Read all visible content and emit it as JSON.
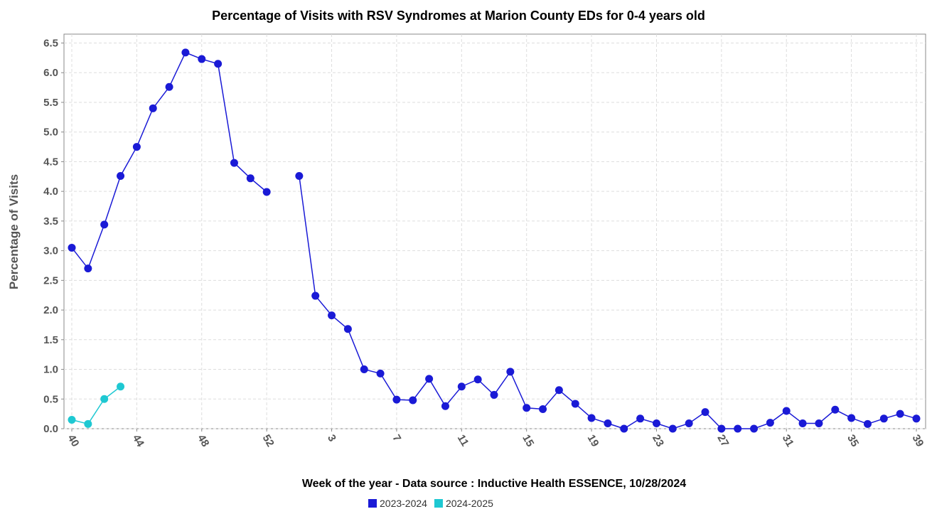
{
  "chart_data": {
    "type": "line",
    "title": "Percentage of Visits with RSV Syndromes at Marion County EDs for 0-4 years old",
    "x_label": "Week of the year - Data source : Inductive Health ESSENCE, 10/28/2024",
    "y_label": "Percentage of Visits",
    "categories": [
      "40",
      null,
      null,
      null,
      "44",
      null,
      null,
      null,
      "48",
      null,
      null,
      null,
      "52",
      null,
      null,
      null,
      "3",
      null,
      null,
      null,
      "7",
      null,
      null,
      null,
      "11",
      null,
      null,
      null,
      "15",
      null,
      null,
      null,
      "19",
      null,
      null,
      null,
      "23",
      null,
      null,
      null,
      "27",
      null,
      null,
      null,
      "31",
      null,
      null,
      null,
      "35",
      null,
      null,
      null,
      "39"
    ],
    "series": [
      {
        "name": "2023-2024",
        "color": "#1a1ad6",
        "values": [
          3.05,
          2.7,
          3.44,
          4.26,
          4.75,
          5.4,
          5.76,
          6.34,
          6.23,
          6.15,
          4.48,
          4.22,
          3.99,
          null,
          4.26,
          2.24,
          1.91,
          1.68,
          1.0,
          0.93,
          0.49,
          0.48,
          0.84,
          0.38,
          0.71,
          0.83,
          0.57,
          0.96,
          0.35,
          0.33,
          0.65,
          0.42,
          0.18,
          0.09,
          0,
          0.17,
          0.09,
          0,
          0.09,
          0.28,
          0,
          0,
          0,
          0.1,
          0.3,
          0.09,
          0.09,
          0.32,
          0.18,
          0.08,
          0.17,
          0.25,
          0.17
        ]
      },
      {
        "name": "2024-2025",
        "color": "#1ec8d2",
        "values": [
          0.15,
          0.08,
          0.5,
          0.71,
          null,
          null,
          null,
          null,
          null,
          null,
          null,
          null,
          null,
          null,
          null,
          null,
          null,
          null,
          null,
          null,
          null,
          null,
          null,
          null,
          null,
          null,
          null,
          null,
          null,
          null,
          null,
          null,
          null,
          null,
          null,
          null,
          null,
          null,
          null,
          null,
          null,
          null,
          null,
          null,
          null,
          null,
          null,
          null,
          null,
          null,
          null,
          null,
          null
        ]
      }
    ],
    "ylim": [
      0,
      6.65
    ],
    "yticks": [
      {
        "value": 0,
        "label": "0.0"
      },
      0.5,
      {
        "value": 1,
        "label": "1.0"
      },
      1.5,
      {
        "value": 2,
        "label": "2.0"
      },
      2.5,
      {
        "value": 3,
        "label": "3.0"
      },
      3.5,
      {
        "value": 4,
        "label": "4.0"
      },
      4.5,
      {
        "value": 5,
        "label": "5.0"
      },
      5.5,
      {
        "value": 6,
        "label": "6.0"
      },
      6.5
    ],
    "grid": true,
    "legend": "bottom"
  }
}
